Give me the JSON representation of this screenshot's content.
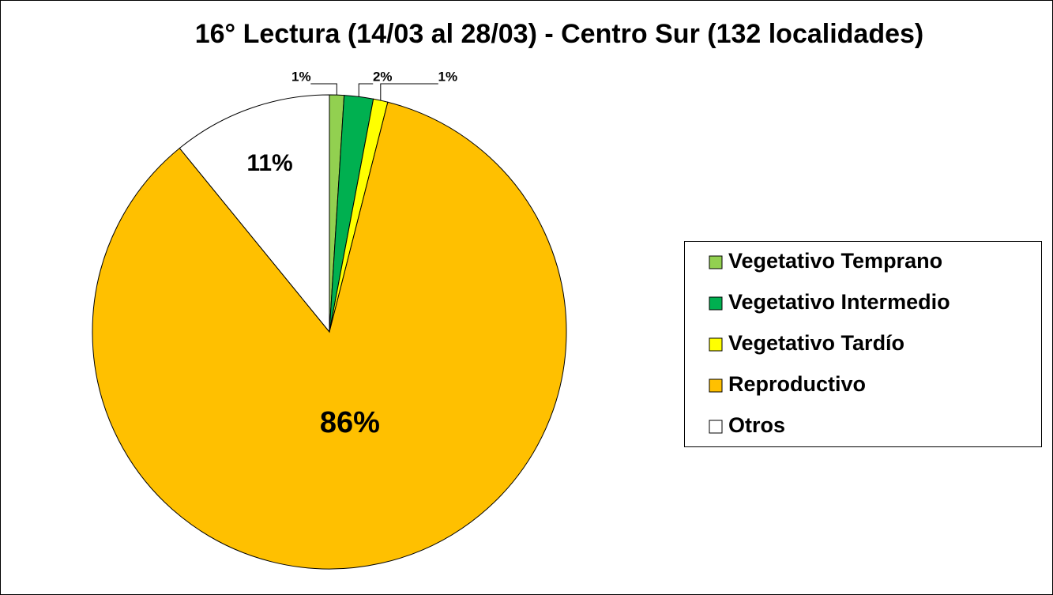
{
  "chart_data": {
    "type": "pie",
    "title": "16° Lectura (14/03 al 28/03) - Centro Sur (132 localidades)",
    "categories": [
      "Vegetativo Temprano",
      "Vegetativo Intermedio",
      "Vegetativo Tardío",
      "Reproductivo",
      "Otros"
    ],
    "values": [
      1,
      2,
      1,
      86,
      11
    ],
    "value_labels": [
      "1%",
      "2%",
      "1%",
      "86%",
      "11%"
    ],
    "colors": [
      "#92d050",
      "#00b050",
      "#ffff00",
      "#ffc000",
      "#ffffff"
    ],
    "legend": "right"
  }
}
